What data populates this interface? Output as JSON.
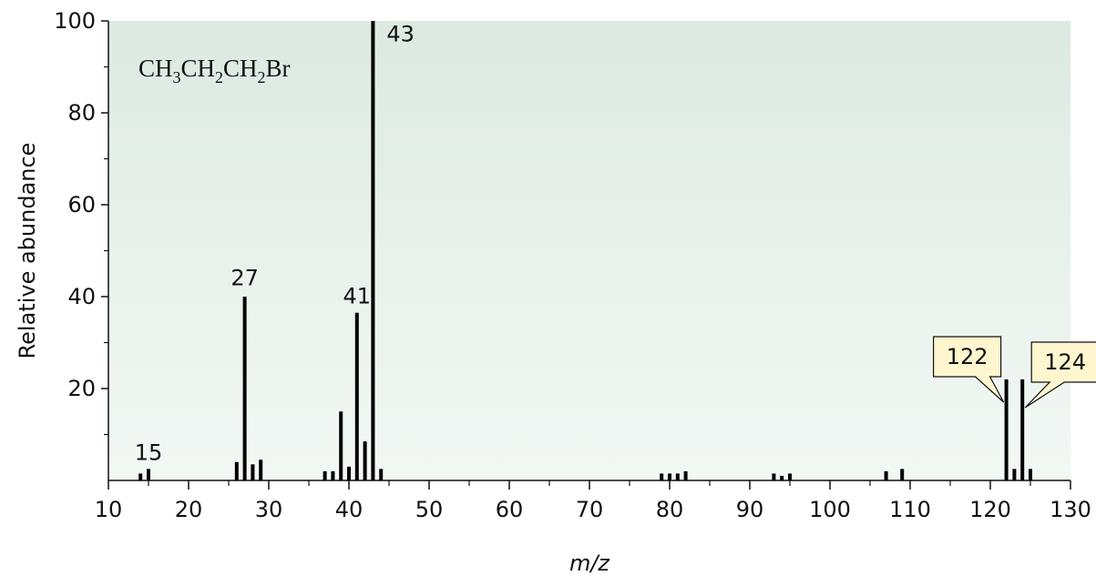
{
  "chart_data": {
    "type": "bar",
    "title": "",
    "compound": {
      "parts": [
        {
          "text": "CH",
          "sub": false
        },
        {
          "text": "3",
          "sub": true
        },
        {
          "text": "CH",
          "sub": false
        },
        {
          "text": "2",
          "sub": true
        },
        {
          "text": "CH",
          "sub": false
        },
        {
          "text": "2",
          "sub": true
        },
        {
          "text": "Br",
          "sub": false
        }
      ]
    },
    "xlabel": "m/z",
    "ylabel": "Relative abundance",
    "xlim": [
      10,
      130
    ],
    "ylim": [
      0,
      100
    ],
    "xticks": [
      10,
      20,
      30,
      40,
      50,
      60,
      70,
      80,
      90,
      100,
      110,
      120,
      130
    ],
    "yticks": [
      20,
      40,
      60,
      80,
      100
    ],
    "grid": false,
    "background_gradient": [
      "#dceae2",
      "#f3f8f5"
    ],
    "peaks": [
      {
        "mz": 14,
        "value": 1.5
      },
      {
        "mz": 15,
        "value": 2.5
      },
      {
        "mz": 26,
        "value": 4
      },
      {
        "mz": 27,
        "value": 40
      },
      {
        "mz": 28,
        "value": 3.5
      },
      {
        "mz": 29,
        "value": 4.5
      },
      {
        "mz": 37,
        "value": 2
      },
      {
        "mz": 38,
        "value": 2
      },
      {
        "mz": 39,
        "value": 15
      },
      {
        "mz": 40,
        "value": 3
      },
      {
        "mz": 41,
        "value": 36.5
      },
      {
        "mz": 42,
        "value": 8.5
      },
      {
        "mz": 43,
        "value": 100
      },
      {
        "mz": 44,
        "value": 2.5
      },
      {
        "mz": 79,
        "value": 1.5
      },
      {
        "mz": 80,
        "value": 1.5
      },
      {
        "mz": 81,
        "value": 1.5
      },
      {
        "mz": 82,
        "value": 2
      },
      {
        "mz": 93,
        "value": 1.5
      },
      {
        "mz": 94,
        "value": 1
      },
      {
        "mz": 95,
        "value": 1.5
      },
      {
        "mz": 107,
        "value": 2
      },
      {
        "mz": 109,
        "value": 2.5
      },
      {
        "mz": 122,
        "value": 22
      },
      {
        "mz": 123,
        "value": 2.5
      },
      {
        "mz": 124,
        "value": 22
      },
      {
        "mz": 125,
        "value": 2.5
      }
    ],
    "labels": [
      {
        "text": "15",
        "mz": 15,
        "y": 4.5
      },
      {
        "text": "27",
        "mz": 27,
        "y": 42.5
      },
      {
        "text": "41",
        "mz": 41,
        "y": 38.5
      },
      {
        "text": "43",
        "mz": 43,
        "y": 95.5
      }
    ],
    "callouts": [
      {
        "text": "122",
        "mz": 122
      },
      {
        "text": "124",
        "mz": 124
      }
    ],
    "callout_fill": "#fdf6cf"
  }
}
